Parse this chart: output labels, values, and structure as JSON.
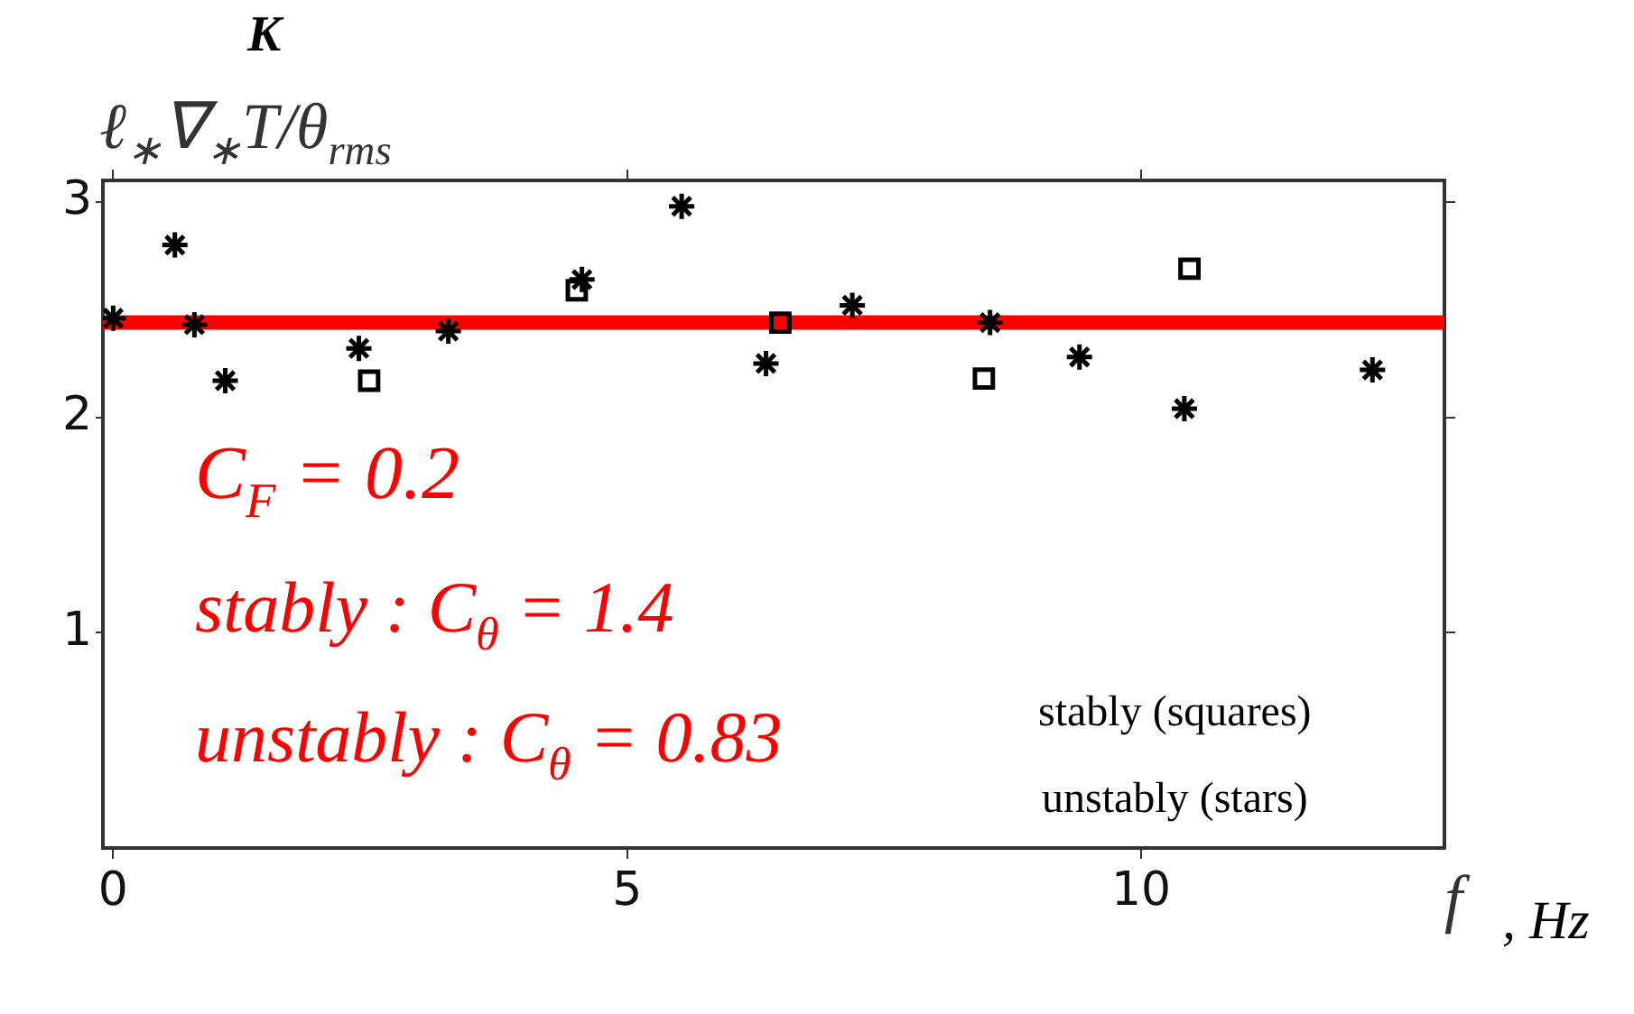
{
  "chart_data": {
    "type": "scatter",
    "ylabel": "ℓ$_{∗}$∇$_{∗}$T/θ$_{rms}$",
    "xlabel": "f",
    "annotations": [
      "C$_{F}$ = 0.2",
      "stably : C$_{θ}$ = 1.4",
      "unstably : C$_{θ}$ = 0.83",
      "stably (squares)",
      "unstably (stars)",
      "K",
      ", Hz"
    ],
    "series": [
      {
        "color": "#000000",
        "x": [
          0,
          0.6,
          0.79,
          1.09,
          2.39,
          3.26,
          4.56,
          5.53,
          6.35,
          7.19,
          8.53,
          9.4,
          10.42,
          12.25
        ],
        "values": [
          2.46,
          2.8,
          2.43,
          2.17,
          2.32,
          2.4,
          2.64,
          2.98,
          2.25,
          2.52,
          2.44,
          2.28,
          2.04,
          2.22
        ]
      },
      {
        "color": "#000000",
        "marker": "square",
        "x": [
          2.49,
          4.51,
          6.49,
          8.47,
          10.47
        ],
        "values": [
          2.17,
          2.59,
          2.44,
          2.18,
          2.69
        ]
      }
    ],
    "ref_lines": [
      {
        "axis": "y",
        "value": 2.44,
        "color": "#ff0000"
      }
    ],
    "xlim": [
      -0.1,
      12.95
    ],
    "xticks": [
      0,
      5,
      10
    ],
    "ylim": [
      0,
      3.1
    ],
    "yticks": [
      1,
      2,
      3
    ],
    "grid": false,
    "legend": false
  }
}
